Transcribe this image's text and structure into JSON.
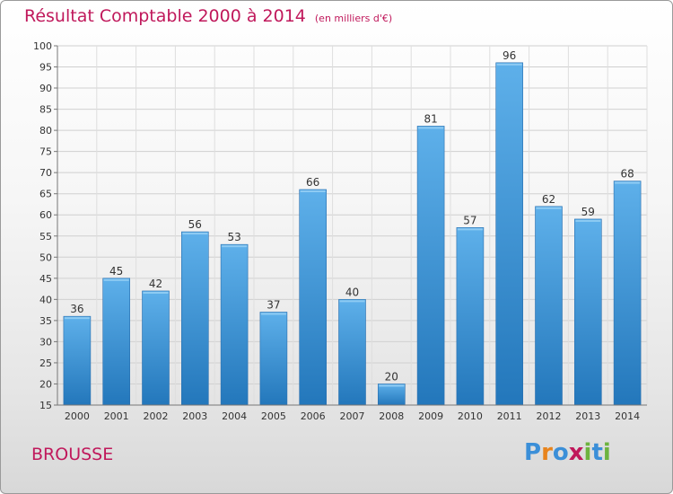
{
  "header": {
    "title": "Résultat Comptable 2000 à 2014",
    "subtitle": "(en milliers d'€)"
  },
  "footer": {
    "commune": "BROUSSE",
    "logo_text": "Proxiti",
    "logo_letters": [
      {
        "ch": "P",
        "color": "#3b8fd8"
      },
      {
        "ch": "r",
        "color": "#e8841d"
      },
      {
        "ch": "o",
        "color": "#3b8fd8"
      },
      {
        "ch": "x",
        "color": "#c0185b"
      },
      {
        "ch": "i",
        "color": "#6db33f"
      },
      {
        "ch": "t",
        "color": "#3b8fd8"
      },
      {
        "ch": "i",
        "color": "#6db33f"
      }
    ]
  },
  "colors": {
    "accent": "#c0185b",
    "bar_top": "#5eb0ea",
    "bar_bottom": "#2377bb"
  },
  "chart_data": {
    "type": "bar",
    "title": "Résultat Comptable 2000 à 2014",
    "subtitle": "(en milliers d'€)",
    "categories": [
      "2000",
      "2001",
      "2002",
      "2003",
      "2004",
      "2005",
      "2006",
      "2007",
      "2008",
      "2009",
      "2010",
      "2011",
      "2012",
      "2013",
      "2014"
    ],
    "values": [
      36,
      45,
      42,
      56,
      53,
      37,
      66,
      40,
      20,
      81,
      57,
      96,
      62,
      59,
      68
    ],
    "ylim": [
      15,
      100
    ],
    "yticks": [
      15,
      20,
      25,
      30,
      35,
      40,
      45,
      50,
      55,
      60,
      65,
      70,
      75,
      80,
      85,
      90,
      95,
      100
    ],
    "grid": true,
    "xlabel": "",
    "ylabel": ""
  }
}
